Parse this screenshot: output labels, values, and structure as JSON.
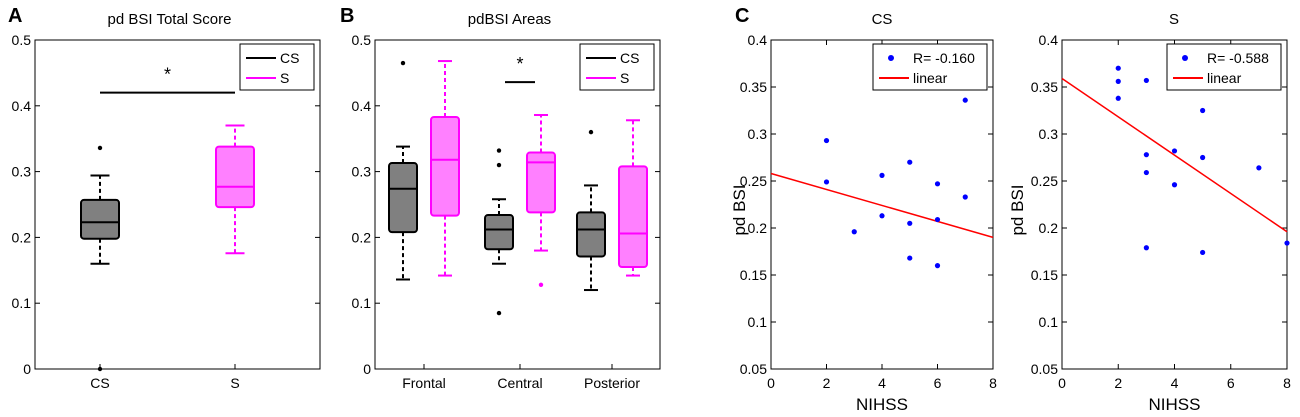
{
  "figure": {
    "panel_labels": [
      "A",
      "B",
      "C"
    ]
  },
  "chart_data": [
    {
      "panel": "A",
      "type": "box",
      "title": "pd BSI Total Score",
      "xlabel": "",
      "ylabel": "",
      "ylim": [
        0,
        0.5
      ],
      "yticks": [
        "0",
        "0.1",
        "0.2",
        "0.3",
        "0.4",
        "0.5"
      ],
      "categories": [
        "CS",
        "S"
      ],
      "legend": {
        "placement": "top-right",
        "entries": [
          {
            "label": "CS",
            "color": "#000000"
          },
          {
            "label": "S",
            "color": "#ff00ff"
          }
        ]
      },
      "significance": [
        {
          "from": 0,
          "to": 1,
          "y": 0.42,
          "label": "*"
        }
      ],
      "boxes": [
        {
          "category": "CS",
          "group": "CS",
          "color": "#000000",
          "fill": "#808080",
          "whisker_low": 0.16,
          "q1": 0.198,
          "median": 0.223,
          "q3": 0.257,
          "whisker_high": 0.294,
          "outliers": [
            0.336,
            0.0
          ]
        },
        {
          "category": "S",
          "group": "S",
          "color": "#ff00ff",
          "fill": "#ff80ff",
          "whisker_low": 0.176,
          "q1": 0.246,
          "median": 0.277,
          "q3": 0.338,
          "whisker_high": 0.37,
          "outliers": []
        }
      ]
    },
    {
      "panel": "B",
      "type": "box",
      "title": "pdBSI Areas",
      "xlabel": "",
      "ylabel": "",
      "ylim": [
        0,
        0.5
      ],
      "yticks": [
        "0",
        "0.1",
        "0.2",
        "0.3",
        "0.4",
        "0.5"
      ],
      "categories": [
        "Frontal",
        "Central",
        "Posterior"
      ],
      "legend": {
        "placement": "top-right",
        "entries": [
          {
            "label": "CS",
            "color": "#000000"
          },
          {
            "label": "S",
            "color": "#ff00ff"
          }
        ]
      },
      "significance": [
        {
          "category": "Central",
          "y": 0.436,
          "label": "*"
        }
      ],
      "boxes": [
        {
          "category": "Frontal",
          "group": "CS",
          "color": "#000000",
          "fill": "#808080",
          "whisker_low": 0.136,
          "q1": 0.208,
          "median": 0.274,
          "q3": 0.313,
          "whisker_high": 0.338,
          "outliers": [
            0.465
          ]
        },
        {
          "category": "Frontal",
          "group": "S",
          "color": "#ff00ff",
          "fill": "#ff80ff",
          "whisker_low": 0.142,
          "q1": 0.233,
          "median": 0.318,
          "q3": 0.383,
          "whisker_high": 0.468,
          "outliers": []
        },
        {
          "category": "Central",
          "group": "CS",
          "color": "#000000",
          "fill": "#808080",
          "whisker_low": 0.16,
          "q1": 0.182,
          "median": 0.212,
          "q3": 0.234,
          "whisker_high": 0.258,
          "outliers": [
            0.085,
            0.31,
            0.332
          ]
        },
        {
          "category": "Central",
          "group": "S",
          "color": "#ff00ff",
          "fill": "#ff80ff",
          "whisker_low": 0.18,
          "q1": 0.238,
          "median": 0.314,
          "q3": 0.329,
          "whisker_high": 0.386,
          "outliers": [
            0.128
          ]
        },
        {
          "category": "Posterior",
          "group": "CS",
          "color": "#000000",
          "fill": "#808080",
          "whisker_low": 0.12,
          "q1": 0.171,
          "median": 0.212,
          "q3": 0.238,
          "whisker_high": 0.279,
          "outliers": [
            0.36
          ]
        },
        {
          "category": "Posterior",
          "group": "S",
          "color": "#ff00ff",
          "fill": "#ff80ff",
          "whisker_low": 0.142,
          "q1": 0.155,
          "median": 0.206,
          "q3": 0.308,
          "whisker_high": 0.378,
          "outliers": []
        }
      ]
    },
    {
      "panel": "C",
      "type": "scatter",
      "title": "CS",
      "xlabel": "NIHSS",
      "ylabel": "pd BSI",
      "xlim": [
        0,
        8
      ],
      "ylim": [
        0.05,
        0.4
      ],
      "xticks": [
        "0",
        "2",
        "4",
        "6",
        "8"
      ],
      "yticks": [
        "0.05",
        "0.1",
        "0.15",
        "0.2",
        "0.25",
        "0.3",
        "0.35",
        "0.4"
      ],
      "legend": {
        "placement": "top-right",
        "entries": [
          {
            "label": "R= -0.160",
            "color": "#0000ff",
            "marker": "dot"
          },
          {
            "label": "linear",
            "color": "#ff0000",
            "marker": "line"
          }
        ]
      },
      "points": [
        {
          "x": 2,
          "y": 0.293
        },
        {
          "x": 2,
          "y": 0.249
        },
        {
          "x": 3,
          "y": 0.196
        },
        {
          "x": 4,
          "y": 0.256
        },
        {
          "x": 4,
          "y": 0.213
        },
        {
          "x": 5,
          "y": 0.27
        },
        {
          "x": 5,
          "y": 0.205
        },
        {
          "x": 5,
          "y": 0.168
        },
        {
          "x": 6,
          "y": 0.247
        },
        {
          "x": 6,
          "y": 0.209
        },
        {
          "x": 6,
          "y": 0.16
        },
        {
          "x": 7,
          "y": 0.336
        },
        {
          "x": 7,
          "y": 0.233
        }
      ],
      "fit": {
        "x": [
          0,
          8
        ],
        "y": [
          0.258,
          0.19
        ],
        "color": "#ff0000"
      }
    },
    {
      "panel": "C",
      "type": "scatter",
      "title": "S",
      "xlabel": "NIHSS",
      "ylabel": "pd BSI",
      "xlim": [
        0,
        8
      ],
      "ylim": [
        0.05,
        0.4
      ],
      "xticks": [
        "0",
        "2",
        "4",
        "6",
        "8"
      ],
      "yticks": [
        "0.05",
        "0.1",
        "0.15",
        "0.2",
        "0.25",
        "0.3",
        "0.35",
        "0.4"
      ],
      "legend": {
        "placement": "top-right",
        "entries": [
          {
            "label": "R= -0.588",
            "color": "#0000ff",
            "marker": "dot"
          },
          {
            "label": "linear",
            "color": "#ff0000",
            "marker": "line"
          }
        ]
      },
      "points": [
        {
          "x": 2,
          "y": 0.37
        },
        {
          "x": 2,
          "y": 0.356
        },
        {
          "x": 2,
          "y": 0.338
        },
        {
          "x": 3,
          "y": 0.357
        },
        {
          "x": 3,
          "y": 0.278
        },
        {
          "x": 3,
          "y": 0.259
        },
        {
          "x": 3,
          "y": 0.179
        },
        {
          "x": 4,
          "y": 0.282
        },
        {
          "x": 4,
          "y": 0.246
        },
        {
          "x": 5,
          "y": 0.325
        },
        {
          "x": 5,
          "y": 0.275
        },
        {
          "x": 5,
          "y": 0.174
        },
        {
          "x": 7,
          "y": 0.264
        },
        {
          "x": 8,
          "y": 0.184
        }
      ],
      "fit": {
        "x": [
          0,
          8
        ],
        "y": [
          0.359,
          0.196
        ],
        "color": "#ff0000"
      }
    }
  ]
}
